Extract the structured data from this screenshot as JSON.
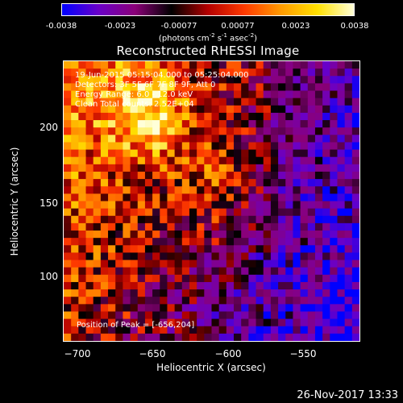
{
  "colorbar": {
    "ticks": [
      "-0.0038",
      "-0.0023",
      "-0.00077",
      "0.00077",
      "0.0023",
      "0.0038"
    ],
    "units_main": "(photons cm",
    "units_exp1": "-2",
    "units_mid": " s",
    "units_exp2": "-1",
    "units_end": " asec",
    "units_exp3": "-2",
    "units_close": ")",
    "colors": [
      "#0000ff",
      "#6a00c8",
      "#8a0078",
      "#000000",
      "#b40000",
      "#ff3a00",
      "#ff9a00",
      "#ffe000",
      "#ffffd8"
    ]
  },
  "chart_data": {
    "type": "heatmap",
    "title": "Reconstructed RHESSI Image",
    "xlabel": "Heliocentric X (arcsec)",
    "ylabel": "Heliocentric Y (arcsec)",
    "xlim": [
      -710,
      -515
    ],
    "ylim": [
      52,
      236
    ],
    "x_ticks": [
      -700,
      -650,
      -600,
      -550
    ],
    "x_tick_labels": [
      "−700",
      "−650",
      "−600",
      "−550"
    ],
    "y_ticks": [
      100,
      150,
      200
    ],
    "y_tick_labels": [
      "100",
      "150",
      "200"
    ],
    "value_range": [
      -0.0038,
      0.0038
    ],
    "peak": [
      -656,
      204
    ],
    "annotations": [
      "19-Jun-2015 05:15:04.000 to 05:25:04.000",
      "Detectors: 3F 5F 6F 7F 8F 9F, Att 0",
      "Energy Range: 6.0 - 12.0 keV",
      "Clean    Total counts: 2.52E+04"
    ],
    "peak_label": "Position of Peak = [-656,204]"
  },
  "footer": "26-Nov-2017 13:33"
}
